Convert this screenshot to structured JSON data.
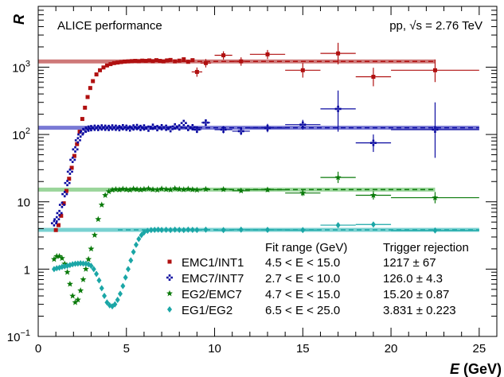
{
  "chart_data": {
    "type": "scatter",
    "ylabel": "R",
    "xlabel": "E (GeV)",
    "ylog": true,
    "xlim": [
      0,
      26
    ],
    "ylim": [
      0.1,
      8000
    ],
    "x_ticks": [
      0,
      5,
      10,
      15,
      20,
      25
    ],
    "y_ticks": [
      {
        "value": 0.1,
        "base": "10",
        "exp": "−1"
      },
      {
        "value": 1,
        "base": "1",
        "exp": ""
      },
      {
        "value": 10,
        "base": "10",
        "exp": ""
      },
      {
        "value": 100,
        "base": "10",
        "exp": "2"
      },
      {
        "value": 1000,
        "base": "10",
        "exp": "3"
      }
    ],
    "annotations": {
      "experiment": "ALICE performance",
      "collision": "pp, √s = 2.76 TeV"
    },
    "legend_position": "bottom-right",
    "legend_headers": {
      "fit_range": "Fit range (GeV)",
      "rejection": "Trigger rejection"
    },
    "series": [
      {
        "name": "EMC1/INT1",
        "color": "#b01010",
        "fit_color": "#c96a6a",
        "marker": "square",
        "fit_range": "4.5 < E < 15.0",
        "rejection": "1217 ±  67",
        "level": 1217,
        "fit_line_x": [
          0,
          22.5
        ],
        "points": [
          {
            "x": 1.0,
            "y": 3.8
          },
          {
            "x": 1.15,
            "y": 4.5
          },
          {
            "x": 1.3,
            "y": 6.2
          },
          {
            "x": 1.45,
            "y": 9.5
          },
          {
            "x": 1.6,
            "y": 14.5
          },
          {
            "x": 1.75,
            "y": 22
          },
          {
            "x": 1.9,
            "y": 32
          },
          {
            "x": 2.05,
            "y": 48
          },
          {
            "x": 2.2,
            "y": 72
          },
          {
            "x": 2.35,
            "y": 110
          },
          {
            "x": 2.5,
            "y": 170
          },
          {
            "x": 2.65,
            "y": 250
          },
          {
            "x": 2.8,
            "y": 360
          },
          {
            "x": 2.95,
            "y": 490
          },
          {
            "x": 3.1,
            "y": 620
          },
          {
            "x": 3.3,
            "y": 780
          },
          {
            "x": 3.5,
            "y": 900
          },
          {
            "x": 3.7,
            "y": 990
          },
          {
            "x": 3.9,
            "y": 1060
          },
          {
            "x": 4.1,
            "y": 1110
          },
          {
            "x": 4.3,
            "y": 1150
          },
          {
            "x": 4.5,
            "y": 1170
          },
          {
            "x": 4.7,
            "y": 1190
          },
          {
            "x": 4.9,
            "y": 1210
          },
          {
            "x": 5.1,
            "y": 1220
          },
          {
            "x": 5.3,
            "y": 1230
          },
          {
            "x": 5.5,
            "y": 1240
          },
          {
            "x": 5.7,
            "y": 1230
          },
          {
            "x": 5.9,
            "y": 1250
          },
          {
            "x": 6.1,
            "y": 1240
          },
          {
            "x": 6.3,
            "y": 1260
          },
          {
            "x": 6.5,
            "y": 1230
          },
          {
            "x": 6.7,
            "y": 1270
          },
          {
            "x": 6.9,
            "y": 1240
          },
          {
            "x": 7.1,
            "y": 1220
          },
          {
            "x": 7.3,
            "y": 1260
          },
          {
            "x": 7.5,
            "y": 1280
          },
          {
            "x": 7.75,
            "y": 1220
          },
          {
            "x": 8.0,
            "y": 1250
          },
          {
            "x": 8.25,
            "y": 1310
          },
          {
            "x": 8.5,
            "y": 1200
          },
          {
            "x": 8.75,
            "y": 1270
          },
          {
            "x": 9.0,
            "y": 850,
            "ex": 0.3,
            "ey_lo": 720,
            "ey_hi": 990
          },
          {
            "x": 9.5,
            "y": 1150,
            "ex": 0.3,
            "ey_lo": 990,
            "ey_hi": 1320
          },
          {
            "x": 10.5,
            "y": 1500,
            "ex": 0.5,
            "ey_lo": 1300,
            "ey_hi": 1720
          },
          {
            "x": 11.5,
            "y": 1220,
            "ex": 0.5,
            "ey_lo": 1050,
            "ey_hi": 1400
          },
          {
            "x": 13.0,
            "y": 1550,
            "ex": 1.0,
            "ey_lo": 1320,
            "ey_hi": 1800
          },
          {
            "x": 15.0,
            "y": 900,
            "ex": 1.0,
            "ey_lo": 700,
            "ey_hi": 1150
          },
          {
            "x": 17.0,
            "y": 1600,
            "ex": 1.0,
            "ey_lo": 1100,
            "ey_hi": 2300
          },
          {
            "x": 19.0,
            "y": 720,
            "ex": 1.0,
            "ey_lo": 520,
            "ey_hi": 980
          },
          {
            "x": 22.5,
            "y": 900,
            "ex": 2.5,
            "ey_lo": 600,
            "ey_hi": 1300
          }
        ]
      },
      {
        "name": "EMC7/INT7",
        "color": "#0a0aa0",
        "fit_color": "#6a6ad0",
        "marker": "cross",
        "fit_range": "2.7 < E < 10.0",
        "rejection": "126.0 ± 4.3",
        "level": 126,
        "fit_line_x": [
          0,
          25
        ],
        "points": [
          {
            "x": 0.9,
            "y": 4.8
          },
          {
            "x": 1.05,
            "y": 5.5
          },
          {
            "x": 1.2,
            "y": 6.8
          },
          {
            "x": 1.35,
            "y": 9.0
          },
          {
            "x": 1.5,
            "y": 13
          },
          {
            "x": 1.65,
            "y": 19
          },
          {
            "x": 1.8,
            "y": 28
          },
          {
            "x": 1.95,
            "y": 42
          },
          {
            "x": 2.1,
            "y": 60
          },
          {
            "x": 2.25,
            "y": 82
          },
          {
            "x": 2.4,
            "y": 100
          },
          {
            "x": 2.55,
            "y": 112
          },
          {
            "x": 2.7,
            "y": 118
          },
          {
            "x": 2.85,
            "y": 122
          },
          {
            "x": 3.0,
            "y": 124
          },
          {
            "x": 3.2,
            "y": 126
          },
          {
            "x": 3.4,
            "y": 125
          },
          {
            "x": 3.6,
            "y": 127
          },
          {
            "x": 3.8,
            "y": 126
          },
          {
            "x": 4.0,
            "y": 125
          },
          {
            "x": 4.2,
            "y": 127
          },
          {
            "x": 4.4,
            "y": 126
          },
          {
            "x": 4.6,
            "y": 124
          },
          {
            "x": 4.8,
            "y": 128
          },
          {
            "x": 5.0,
            "y": 126
          },
          {
            "x": 5.2,
            "y": 123
          },
          {
            "x": 5.4,
            "y": 127
          },
          {
            "x": 5.6,
            "y": 129
          },
          {
            "x": 5.8,
            "y": 125
          },
          {
            "x": 6.0,
            "y": 127
          },
          {
            "x": 6.25,
            "y": 122
          },
          {
            "x": 6.5,
            "y": 130
          },
          {
            "x": 6.75,
            "y": 124
          },
          {
            "x": 7.0,
            "y": 128
          },
          {
            "x": 7.25,
            "y": 126
          },
          {
            "x": 7.5,
            "y": 120
          },
          {
            "x": 7.75,
            "y": 132
          },
          {
            "x": 8.0,
            "y": 127
          },
          {
            "x": 8.25,
            "y": 148
          },
          {
            "x": 8.5,
            "y": 125
          },
          {
            "x": 8.75,
            "y": 128
          },
          {
            "x": 9.0,
            "y": 118,
            "ex": 0.25,
            "ey_lo": 105,
            "ey_hi": 132
          },
          {
            "x": 9.5,
            "y": 150,
            "ex": 0.25,
            "ey_lo": 133,
            "ey_hi": 168
          },
          {
            "x": 10.5,
            "y": 118,
            "ex": 0.5,
            "ey_lo": 104,
            "ey_hi": 133
          },
          {
            "x": 11.5,
            "y": 112,
            "ex": 0.5,
            "ey_lo": 98,
            "ey_hi": 127
          },
          {
            "x": 13.0,
            "y": 125,
            "ex": 1.0,
            "ey_lo": 108,
            "ey_hi": 144
          },
          {
            "x": 15.0,
            "y": 140,
            "ex": 1.0,
            "ey_lo": 118,
            "ey_hi": 165
          },
          {
            "x": 17.0,
            "y": 240,
            "ex": 1.0,
            "ey_lo": 110,
            "ey_hi": 450
          },
          {
            "x": 19.0,
            "y": 75,
            "ex": 1.0,
            "ey_lo": 55,
            "ey_hi": 100
          },
          {
            "x": 22.5,
            "y": 118,
            "ex": 2.5,
            "ey_lo": 45,
            "ey_hi": 300
          }
        ]
      },
      {
        "name": "EG2/EMC7",
        "color": "#0a7a0a",
        "fit_color": "#8fd08f",
        "marker": "star",
        "fit_range": "4.7 < E < 15.0",
        "rejection": "15.20 ± 0.87",
        "level": 15.2,
        "fit_line_x": [
          0,
          22.5
        ],
        "points": [
          {
            "x": 0.9,
            "y": 1.4
          },
          {
            "x": 1.05,
            "y": 1.55
          },
          {
            "x": 1.2,
            "y": 1.55
          },
          {
            "x": 1.35,
            "y": 1.45
          },
          {
            "x": 1.5,
            "y": 1.2
          },
          {
            "x": 1.65,
            "y": 0.9
          },
          {
            "x": 1.8,
            "y": 0.6
          },
          {
            "x": 1.95,
            "y": 0.4
          },
          {
            "x": 2.1,
            "y": 0.32
          },
          {
            "x": 2.25,
            "y": 0.35
          },
          {
            "x": 2.4,
            "y": 0.48
          },
          {
            "x": 2.55,
            "y": 0.7
          },
          {
            "x": 2.7,
            "y": 1.0
          },
          {
            "x": 2.85,
            "y": 1.4
          },
          {
            "x": 3.0,
            "y": 2.0
          },
          {
            "x": 3.2,
            "y": 3.2
          },
          {
            "x": 3.4,
            "y": 5.5
          },
          {
            "x": 3.6,
            "y": 9.0
          },
          {
            "x": 3.8,
            "y": 12.5
          },
          {
            "x": 4.0,
            "y": 14.2
          },
          {
            "x": 4.2,
            "y": 15.0
          },
          {
            "x": 4.4,
            "y": 15.3
          },
          {
            "x": 4.6,
            "y": 15.1
          },
          {
            "x": 4.8,
            "y": 15.5
          },
          {
            "x": 5.0,
            "y": 15.2
          },
          {
            "x": 5.2,
            "y": 15.0
          },
          {
            "x": 5.4,
            "y": 15.6
          },
          {
            "x": 5.6,
            "y": 15.3
          },
          {
            "x": 5.8,
            "y": 15.1
          },
          {
            "x": 6.0,
            "y": 15.4
          },
          {
            "x": 6.25,
            "y": 15.7
          },
          {
            "x": 6.5,
            "y": 15.2
          },
          {
            "x": 6.75,
            "y": 15.0
          },
          {
            "x": 7.0,
            "y": 15.6
          },
          {
            "x": 7.25,
            "y": 15.3
          },
          {
            "x": 7.5,
            "y": 15.1
          },
          {
            "x": 7.75,
            "y": 15.8
          },
          {
            "x": 8.0,
            "y": 15.4
          },
          {
            "x": 8.25,
            "y": 15.2
          },
          {
            "x": 8.5,
            "y": 15.5
          },
          {
            "x": 8.75,
            "y": 15.2
          },
          {
            "x": 9.0,
            "y": 15.0,
            "ex": 0.25,
            "ey_lo": 14.4,
            "ey_hi": 15.6
          },
          {
            "x": 9.5,
            "y": 15.4,
            "ex": 0.25,
            "ey_lo": 14.7,
            "ey_hi": 16.1
          },
          {
            "x": 10.5,
            "y": 15.3,
            "ex": 0.5,
            "ey_lo": 14.5,
            "ey_hi": 16.1
          },
          {
            "x": 11.5,
            "y": 14.6,
            "ex": 0.5,
            "ey_lo": 13.8,
            "ey_hi": 15.4
          },
          {
            "x": 13.0,
            "y": 15.1,
            "ex": 1.0,
            "ey_lo": 14.0,
            "ey_hi": 16.2
          },
          {
            "x": 15.0,
            "y": 13.5,
            "ex": 1.0,
            "ey_lo": 12.2,
            "ey_hi": 14.9
          },
          {
            "x": 17.0,
            "y": 23.0,
            "ex": 1.0,
            "ey_lo": 19.0,
            "ey_hi": 28.0
          },
          {
            "x": 19.0,
            "y": 12.5,
            "ex": 1.0,
            "ey_lo": 10.8,
            "ey_hi": 14.4
          },
          {
            "x": 22.5,
            "y": 11.5,
            "ex": 2.5,
            "ey_lo": 9.5,
            "ey_hi": 14.0
          }
        ]
      },
      {
        "name": "EG1/EG2",
        "color": "#1aa6a6",
        "fit_color": "#6acccc",
        "marker": "diamond",
        "fit_range": "6.5 < E < 25.0",
        "rejection": "3.831 ± 0.223",
        "level": 3.831,
        "fit_line_x": [
          0,
          25
        ],
        "points": [
          {
            "x": 0.9,
            "y": 1.0
          },
          {
            "x": 1.05,
            "y": 1.03
          },
          {
            "x": 1.2,
            "y": 1.05
          },
          {
            "x": 1.35,
            "y": 1.08
          },
          {
            "x": 1.5,
            "y": 1.1
          },
          {
            "x": 1.65,
            "y": 1.12
          },
          {
            "x": 1.8,
            "y": 1.15
          },
          {
            "x": 1.95,
            "y": 1.18
          },
          {
            "x": 2.1,
            "y": 1.2
          },
          {
            "x": 2.25,
            "y": 1.21
          },
          {
            "x": 2.4,
            "y": 1.22
          },
          {
            "x": 2.55,
            "y": 1.21
          },
          {
            "x": 2.7,
            "y": 1.2
          },
          {
            "x": 2.85,
            "y": 1.18
          },
          {
            "x": 3.0,
            "y": 1.12
          },
          {
            "x": 3.15,
            "y": 1.0
          },
          {
            "x": 3.3,
            "y": 0.85
          },
          {
            "x": 3.45,
            "y": 0.68
          },
          {
            "x": 3.6,
            "y": 0.52
          },
          {
            "x": 3.75,
            "y": 0.4
          },
          {
            "x": 3.9,
            "y": 0.32
          },
          {
            "x": 4.05,
            "y": 0.29
          },
          {
            "x": 4.2,
            "y": 0.28
          },
          {
            "x": 4.35,
            "y": 0.3
          },
          {
            "x": 4.5,
            "y": 0.35
          },
          {
            "x": 4.65,
            "y": 0.43
          },
          {
            "x": 4.8,
            "y": 0.56
          },
          {
            "x": 4.95,
            "y": 0.75
          },
          {
            "x": 5.1,
            "y": 1.0
          },
          {
            "x": 5.25,
            "y": 1.35
          },
          {
            "x": 5.4,
            "y": 1.8
          },
          {
            "x": 5.55,
            "y": 2.3
          },
          {
            "x": 5.7,
            "y": 2.8
          },
          {
            "x": 5.85,
            "y": 3.2
          },
          {
            "x": 6.0,
            "y": 3.5
          },
          {
            "x": 6.2,
            "y": 3.7
          },
          {
            "x": 6.4,
            "y": 3.8
          },
          {
            "x": 6.6,
            "y": 3.83
          },
          {
            "x": 6.8,
            "y": 3.85
          },
          {
            "x": 7.0,
            "y": 3.82
          },
          {
            "x": 7.25,
            "y": 3.84
          },
          {
            "x": 7.5,
            "y": 3.81
          },
          {
            "x": 7.75,
            "y": 3.86
          },
          {
            "x": 8.0,
            "y": 3.83
          },
          {
            "x": 8.25,
            "y": 3.8
          },
          {
            "x": 8.5,
            "y": 3.85
          },
          {
            "x": 8.75,
            "y": 3.83
          },
          {
            "x": 9.0,
            "y": 3.82,
            "ex": 0.25,
            "ey_lo": 3.74,
            "ey_hi": 3.9
          },
          {
            "x": 9.5,
            "y": 3.86,
            "ex": 0.25,
            "ey_lo": 3.77,
            "ey_hi": 3.95
          },
          {
            "x": 10.5,
            "y": 3.8,
            "ex": 0.5,
            "ey_lo": 3.7,
            "ey_hi": 3.9
          },
          {
            "x": 11.5,
            "y": 3.85,
            "ex": 0.5,
            "ey_lo": 3.74,
            "ey_hi": 3.96
          },
          {
            "x": 13.0,
            "y": 3.83,
            "ex": 1.0,
            "ey_lo": 3.7,
            "ey_hi": 3.96
          },
          {
            "x": 15.0,
            "y": 3.8,
            "ex": 1.0,
            "ey_lo": 3.64,
            "ey_hi": 3.96
          },
          {
            "x": 17.0,
            "y": 4.5,
            "ex": 1.0,
            "ey_lo": 4.2,
            "ey_hi": 4.8
          },
          {
            "x": 19.0,
            "y": 4.6,
            "ex": 1.0,
            "ey_lo": 4.3,
            "ey_hi": 4.9
          },
          {
            "x": 22.5,
            "y": 3.75,
            "ex": 2.5,
            "ey_lo": 3.5,
            "ey_hi": 4.0
          }
        ]
      }
    ]
  }
}
